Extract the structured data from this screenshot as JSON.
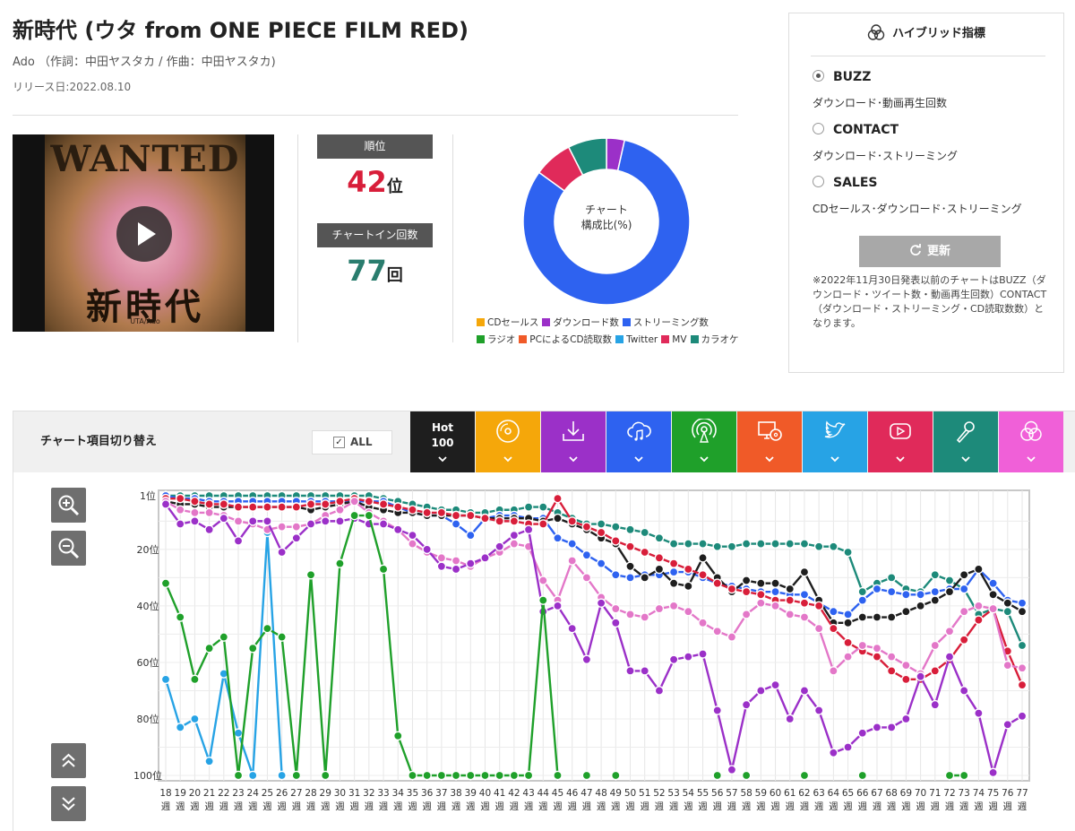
{
  "song": {
    "title": "新時代 (ウタ from ONE PIECE FILM RED)",
    "artist_line": "Ado （作詞：中田ヤスタカ / 作曲：中田ヤスタカ)",
    "release": "リリース日:2022.08.10"
  },
  "poster": {
    "wanted": "WANTED",
    "kanji": "新時代",
    "sub": "UTA/Ado"
  },
  "rank": {
    "label": "順位",
    "value": "42",
    "unit": "位",
    "color": "#d81e3a"
  },
  "chart_in": {
    "label": "チャートイン回数",
    "value": "77",
    "unit": "回",
    "color": "#2a7d6e"
  },
  "donut": {
    "label_line1": "チャート",
    "label_line2": "構成比(%)",
    "slices": [
      {
        "name": "ダウンロード数",
        "value": 3.5,
        "color": "#9b30c8"
      },
      {
        "name": "ストリーミング数",
        "value": 81.5,
        "color": "#2e62f0"
      },
      {
        "name": "MV",
        "value": 7.5,
        "color": "#e02a5a"
      },
      {
        "name": "カラオケ",
        "value": 7.5,
        "color": "#1d8a7a"
      }
    ]
  },
  "legend": {
    "row1": [
      {
        "label": "CDセールス",
        "color": "#f5a70a"
      },
      {
        "label": "ダウンロード数",
        "color": "#9b30c8"
      },
      {
        "label": "ストリーミング数",
        "color": "#2e62f0"
      }
    ],
    "row2": [
      {
        "label": "ラジオ",
        "color": "#1fa02a"
      },
      {
        "label": "PCによるCD読取数",
        "color": "#f05a28"
      },
      {
        "label": "Twitter",
        "color": "#27a3e5"
      },
      {
        "label": "MV",
        "color": "#e02a5a"
      },
      {
        "label": "カラオケ",
        "color": "#1d8a7a"
      }
    ]
  },
  "hybrid": {
    "title": "ハイブリッド指標",
    "options": [
      {
        "label": "BUZZ",
        "desc": "ダウンロード･動画再生回数",
        "selected": true
      },
      {
        "label": "CONTACT",
        "desc": "ダウンロード･ストリーミング",
        "selected": false
      },
      {
        "label": "SALES",
        "desc": "CDセールス･ダウンロード･ストリーミング",
        "selected": false
      }
    ],
    "refresh_label": "更新",
    "note": "※2022年11月30日発表以前のチャートはBUZZ（ダウンロード・ツイート数・動画再生回数）CONTACT（ダウンロード・ストリーミング・CD読取数数）となります。"
  },
  "switcher": {
    "title": "チャート項目切り替え",
    "all_label": "ALL",
    "hot_line1": "Hot",
    "hot_line2": "100",
    "tabs": [
      {
        "icon": "hot100-icon",
        "color": "#1e1e1e"
      },
      {
        "icon": "cd-icon",
        "color": "#f5a70a"
      },
      {
        "icon": "download-icon",
        "color": "#9b30c8"
      },
      {
        "icon": "cloud-music-icon",
        "color": "#2e62f0"
      },
      {
        "icon": "radio-icon",
        "color": "#1fa02a"
      },
      {
        "icon": "pc-cd-icon",
        "color": "#f05a28"
      },
      {
        "icon": "twitter-icon",
        "color": "#27a3e5"
      },
      {
        "icon": "youtube-icon",
        "color": "#e02a5a"
      },
      {
        "icon": "microphone-icon",
        "color": "#1d8a7a"
      },
      {
        "icon": "hybrid-icon",
        "color": "#f060d8"
      }
    ]
  },
  "chart_data": {
    "type": "line",
    "y_axis": {
      "ticks": [
        "1位",
        "20位",
        "40位",
        "60位",
        "80位",
        "100位"
      ],
      "tick_values": [
        1,
        20,
        40,
        60,
        80,
        100
      ],
      "range": [
        1,
        100
      ],
      "inverted": true
    },
    "x_ticks": [
      "18",
      "19",
      "20",
      "21",
      "22",
      "23",
      "24",
      "25",
      "26",
      "27",
      "28",
      "29",
      "30",
      "31",
      "32",
      "33",
      "34",
      "35",
      "36",
      "37",
      "38",
      "39",
      "40",
      "41",
      "42",
      "43",
      "44",
      "45",
      "46",
      "47",
      "48",
      "49",
      "50",
      "51",
      "52",
      "53",
      "54",
      "55",
      "56",
      "57",
      "58",
      "59",
      "60",
      "61",
      "62",
      "63",
      "64",
      "65",
      "66",
      "67",
      "68",
      "69",
      "70",
      "71",
      "72",
      "73",
      "74",
      "75",
      "76",
      "77"
    ],
    "x_unit": "週",
    "grid": true,
    "series": [
      {
        "key": "karaoke",
        "color": "#1d8a7a",
        "values": [
          1,
          1,
          1,
          1,
          1,
          1,
          1,
          1,
          1,
          1,
          1,
          1,
          1,
          1,
          1,
          2,
          3,
          4,
          5,
          6,
          6,
          7,
          7,
          6,
          6,
          5,
          5,
          7,
          9,
          11,
          11,
          12,
          13,
          14,
          16,
          18,
          18,
          18,
          19,
          19,
          18,
          18,
          18,
          18,
          18,
          19,
          19,
          21,
          35,
          32,
          30,
          34,
          35,
          29,
          31,
          34,
          43,
          41,
          42,
          54
        ]
      },
      {
        "key": "streaming",
        "color": "#2e62f0",
        "values": [
          1,
          2,
          2,
          3,
          3,
          3,
          3,
          3,
          3,
          3,
          3,
          3,
          3,
          3,
          3,
          3,
          5,
          7,
          8,
          8,
          11,
          15,
          9,
          8,
          8,
          9,
          9,
          16,
          18,
          22,
          25,
          29,
          30,
          29,
          29,
          28,
          28,
          30,
          32,
          33,
          34,
          35,
          35,
          36,
          36,
          39,
          42,
          43,
          38,
          34,
          35,
          36,
          36,
          35,
          34,
          34,
          27,
          32,
          38,
          39
        ]
      },
      {
        "key": "hot100",
        "color": "#1e1e1e",
        "values": [
          3,
          4,
          4,
          5,
          5,
          5,
          5,
          5,
          5,
          5,
          6,
          5,
          4,
          3,
          5,
          6,
          7,
          7,
          8,
          8,
          8,
          8,
          9,
          9,
          9,
          9,
          10,
          9,
          11,
          13,
          16,
          18,
          26,
          30,
          27,
          32,
          33,
          23,
          30,
          35,
          31,
          32,
          32,
          34,
          28,
          38,
          46,
          46,
          44,
          44,
          44,
          42,
          40,
          38,
          35,
          29,
          27,
          36,
          39,
          42
        ]
      },
      {
        "key": "mv",
        "color": "#d81e3a",
        "values": [
          2,
          2,
          3,
          4,
          4,
          5,
          5,
          5,
          5,
          5,
          4,
          4,
          3,
          2,
          3,
          4,
          5,
          6,
          7,
          7,
          8,
          8,
          9,
          10,
          10,
          11,
          11,
          2,
          10,
          12,
          14,
          17,
          19,
          21,
          23,
          25,
          27,
          29,
          32,
          34,
          35,
          36,
          38,
          38,
          39,
          40,
          48,
          53,
          56,
          58,
          63,
          66,
          66,
          63,
          59,
          52,
          45,
          41,
          56,
          68
        ]
      },
      {
        "key": "twitter",
        "color": "#27a3e5",
        "values": [
          66,
          83,
          80,
          95,
          64,
          85,
          101,
          14,
          101,
          null,
          null,
          null,
          null,
          null,
          null,
          null,
          null,
          null,
          null,
          null,
          null,
          null,
          null,
          null,
          null,
          null,
          null,
          null,
          null,
          null,
          null,
          null,
          null,
          null,
          null,
          null,
          null,
          null,
          null,
          null,
          null,
          null,
          null,
          null,
          null,
          null,
          null,
          null,
          null,
          null,
          null,
          null,
          null,
          null,
          null,
          null,
          null,
          null,
          null,
          null
        ]
      },
      {
        "key": "buzz",
        "color": "#e377c8",
        "values": [
          3,
          6,
          7,
          7,
          8,
          10,
          11,
          13,
          12,
          12,
          11,
          8,
          6,
          3,
          7,
          10,
          13,
          18,
          21,
          23,
          24,
          26,
          23,
          21,
          18,
          19,
          31,
          38,
          24,
          30,
          37,
          41,
          43,
          44,
          41,
          40,
          42,
          46,
          49,
          51,
          43,
          39,
          40,
          43,
          44,
          48,
          63,
          58,
          54,
          55,
          58,
          61,
          64,
          54,
          49,
          42,
          40,
          41,
          61,
          62
        ]
      },
      {
        "key": "download",
        "color": "#9b30c8",
        "values": [
          4,
          11,
          10,
          13,
          9,
          17,
          10,
          10,
          21,
          16,
          11,
          10,
          10,
          9,
          11,
          11,
          13,
          15,
          20,
          26,
          27,
          25,
          23,
          19,
          15,
          13,
          42,
          40,
          48,
          59,
          39,
          46,
          63,
          63,
          70,
          59,
          58,
          57,
          77,
          98,
          75,
          70,
          68,
          80,
          70,
          77,
          92,
          90,
          85,
          83,
          83,
          80,
          65,
          75,
          58,
          70,
          78,
          99,
          82,
          79
        ]
      },
      {
        "key": "radio",
        "color": "#1fa02a",
        "values": [
          32,
          44,
          66,
          55,
          51,
          101,
          55,
          48,
          51,
          101,
          29,
          101,
          25,
          8,
          8,
          27,
          86,
          101,
          101,
          101,
          101,
          101,
          101,
          101,
          101,
          101,
          38,
          101,
          null,
          101,
          null,
          101,
          null,
          null,
          null,
          null,
          null,
          null,
          101,
          null,
          101,
          null,
          null,
          null,
          101,
          null,
          null,
          null,
          101,
          null,
          null,
          null,
          null,
          null,
          101,
          101,
          null,
          null,
          null,
          null
        ]
      }
    ]
  }
}
